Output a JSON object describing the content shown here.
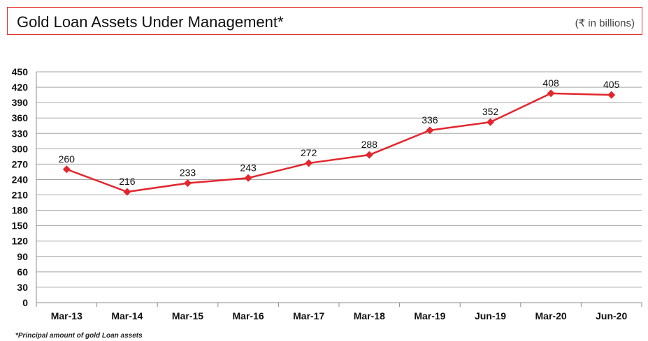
{
  "header": {
    "title": "Gold Loan Assets Under Management*",
    "units": "(₹ in billions)"
  },
  "footnote": "*Principal amount of gold Loan assets",
  "colors": {
    "series": "#e3262d",
    "grid": "#a6a6a6",
    "border": "#e3342f"
  },
  "chart_data": {
    "type": "line",
    "title": "Gold Loan Assets Under Management*",
    "categories": [
      "Mar-13",
      "Mar-14",
      "Mar-15",
      "Mar-16",
      "Mar-17",
      "Mar-18",
      "Mar-19",
      "Jun-19",
      "Mar-20",
      "Jun-20"
    ],
    "values": [
      260,
      216,
      233,
      243,
      272,
      288,
      336,
      352,
      408,
      405
    ],
    "ylim": [
      0,
      450
    ],
    "yticks": [
      0,
      30,
      60,
      90,
      120,
      150,
      180,
      210,
      240,
      270,
      300,
      330,
      360,
      390,
      420,
      450
    ],
    "grid": true,
    "marker": "diamond",
    "data_labels": true
  }
}
